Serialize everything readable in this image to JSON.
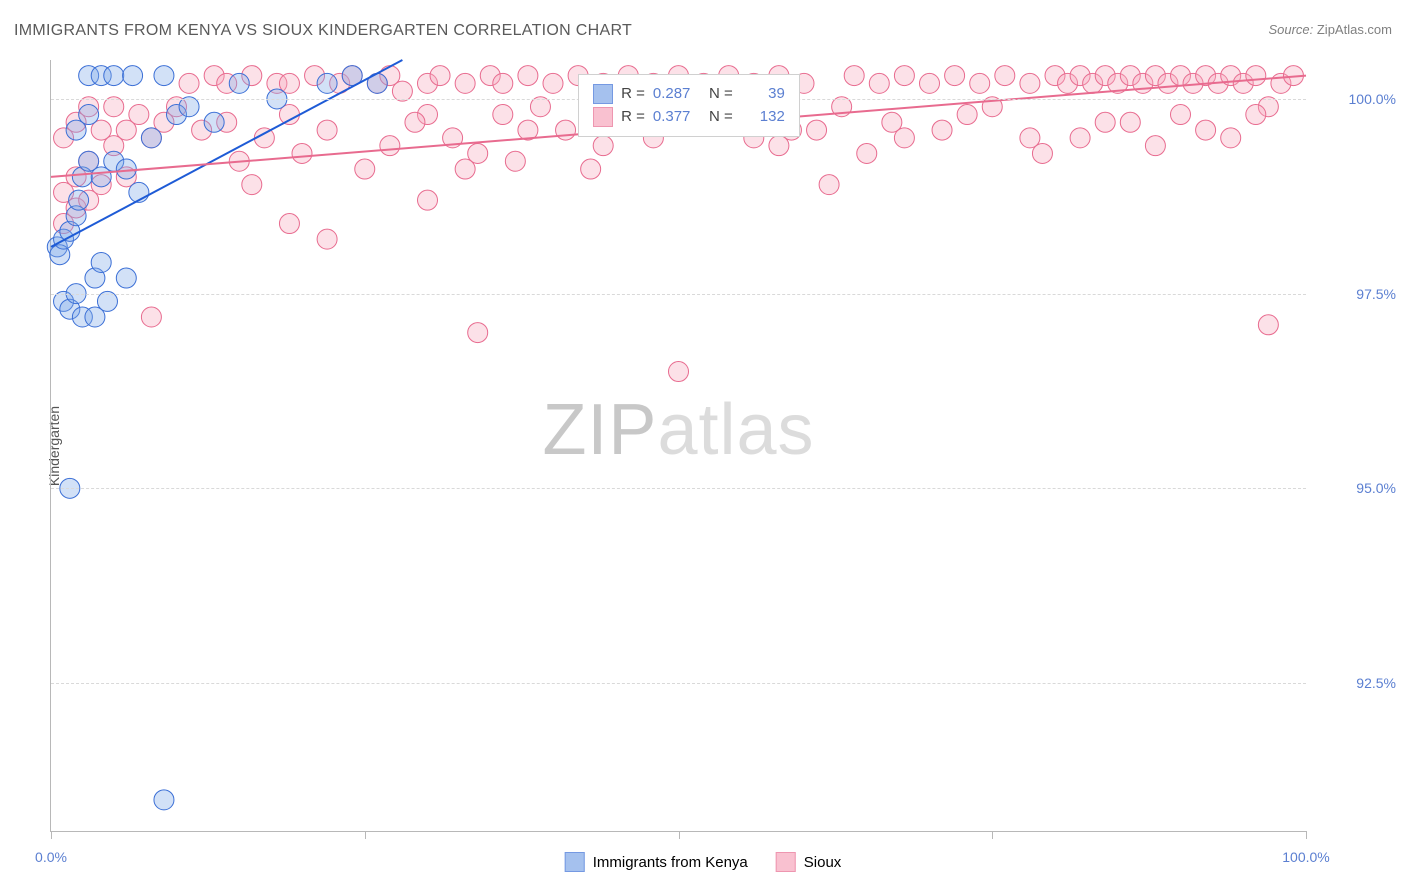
{
  "header": {
    "title": "IMMIGRANTS FROM KENYA VS SIOUX KINDERGARTEN CORRELATION CHART",
    "source_label": "Source: ",
    "source_value": "ZipAtlas.com"
  },
  "chart": {
    "type": "scatter",
    "ylabel": "Kindergarten",
    "xlim": [
      0,
      100
    ],
    "ylim": [
      90.6,
      100.5
    ],
    "yticks": [
      {
        "v": 92.5,
        "label": "92.5%"
      },
      {
        "v": 95.0,
        "label": "95.0%"
      },
      {
        "v": 97.5,
        "label": "97.5%"
      },
      {
        "v": 100.0,
        "label": "100.0%"
      }
    ],
    "xticks_major": [
      0,
      50,
      100
    ],
    "xticks_minor": [
      25,
      75
    ],
    "xtick_labels": {
      "0": "0.0%",
      "100": "100.0%"
    },
    "background_color": "#ffffff",
    "grid_color": "#d9d9d9",
    "axis_color": "#b8b8b8",
    "tick_label_color": "#5b7fd1",
    "marker_radius": 10,
    "marker_opacity": 0.35,
    "line_width": 2,
    "series": [
      {
        "name": "Immigrants from Kenya",
        "color_fill": "#7fa8e8",
        "color_stroke": "#3b6fd6",
        "line_color": "#1e5bd6",
        "R": "0.287",
        "N": "39",
        "trend": {
          "x1": 0,
          "y1": 98.1,
          "x2": 28,
          "y2": 100.5
        },
        "points": [
          [
            0.5,
            98.1
          ],
          [
            0.7,
            98.0
          ],
          [
            1.0,
            98.2
          ],
          [
            1.5,
            98.3
          ],
          [
            2.0,
            98.5
          ],
          [
            2.2,
            98.7
          ],
          [
            2.5,
            99.0
          ],
          [
            3.0,
            99.2
          ],
          [
            1.0,
            97.4
          ],
          [
            1.5,
            97.3
          ],
          [
            2.0,
            97.5
          ],
          [
            2.5,
            97.2
          ],
          [
            3.5,
            97.7
          ],
          [
            4.0,
            97.9
          ],
          [
            3.5,
            97.2
          ],
          [
            4.5,
            97.4
          ],
          [
            2.0,
            99.6
          ],
          [
            3.0,
            99.8
          ],
          [
            3.0,
            100.3
          ],
          [
            4.0,
            100.3
          ],
          [
            5.0,
            100.3
          ],
          [
            6.5,
            100.3
          ],
          [
            9.0,
            100.3
          ],
          [
            4.0,
            99.0
          ],
          [
            5.0,
            99.2
          ],
          [
            6.0,
            99.1
          ],
          [
            10.0,
            99.8
          ],
          [
            7.0,
            98.8
          ],
          [
            1.5,
            95.0
          ],
          [
            6.0,
            97.7
          ],
          [
            8.0,
            99.5
          ],
          [
            11.0,
            99.9
          ],
          [
            13.0,
            99.7
          ],
          [
            9.0,
            91.0
          ],
          [
            15.0,
            100.2
          ],
          [
            18.0,
            100.0
          ],
          [
            22.0,
            100.2
          ],
          [
            24.0,
            100.3
          ],
          [
            26.0,
            100.2
          ]
        ]
      },
      {
        "name": "Sioux",
        "color_fill": "#f7a8bd",
        "color_stroke": "#e86b8f",
        "line_color": "#e86b8f",
        "R": "0.377",
        "N": "132",
        "trend": {
          "x1": 0,
          "y1": 99.0,
          "x2": 100,
          "y2": 100.3
        },
        "points": [
          [
            1,
            98.8
          ],
          [
            2,
            99.0
          ],
          [
            3,
            99.2
          ],
          [
            1,
            98.4
          ],
          [
            2,
            98.6
          ],
          [
            3,
            98.7
          ],
          [
            4,
            98.9
          ],
          [
            1,
            99.5
          ],
          [
            2,
            99.7
          ],
          [
            4,
            99.6
          ],
          [
            3,
            99.9
          ],
          [
            5,
            99.4
          ],
          [
            6,
            99.6
          ],
          [
            7,
            99.8
          ],
          [
            8,
            99.5
          ],
          [
            9,
            99.7
          ],
          [
            10,
            99.9
          ],
          [
            8,
            97.2
          ],
          [
            6,
            99.0
          ],
          [
            5,
            99.9
          ],
          [
            11,
            100.2
          ],
          [
            13,
            100.3
          ],
          [
            14,
            100.2
          ],
          [
            16,
            100.3
          ],
          [
            18,
            100.2
          ],
          [
            19,
            100.2
          ],
          [
            21,
            100.3
          ],
          [
            23,
            100.2
          ],
          [
            24,
            100.3
          ],
          [
            26,
            100.2
          ],
          [
            27,
            100.3
          ],
          [
            28,
            100.1
          ],
          [
            12,
            99.6
          ],
          [
            14,
            99.7
          ],
          [
            17,
            99.5
          ],
          [
            19,
            99.8
          ],
          [
            20,
            99.3
          ],
          [
            22,
            99.6
          ],
          [
            19,
            98.4
          ],
          [
            22,
            98.2
          ],
          [
            15,
            99.2
          ],
          [
            16,
            98.9
          ],
          [
            30,
            100.2
          ],
          [
            31,
            100.3
          ],
          [
            33,
            100.2
          ],
          [
            35,
            100.3
          ],
          [
            36,
            100.2
          ],
          [
            38,
            100.3
          ],
          [
            30,
            99.8
          ],
          [
            32,
            99.5
          ],
          [
            34,
            99.3
          ],
          [
            36,
            99.8
          ],
          [
            38,
            99.6
          ],
          [
            30,
            98.7
          ],
          [
            34,
            97.0
          ],
          [
            25,
            99.1
          ],
          [
            27,
            99.4
          ],
          [
            40,
            100.2
          ],
          [
            42,
            100.3
          ],
          [
            44,
            100.2
          ],
          [
            46,
            100.3
          ],
          [
            48,
            100.2
          ],
          [
            41,
            99.6
          ],
          [
            44,
            99.4
          ],
          [
            47,
            99.8
          ],
          [
            43,
            99.1
          ],
          [
            50,
            100.3
          ],
          [
            52,
            100.2
          ],
          [
            54,
            100.3
          ],
          [
            53,
            99.7
          ],
          [
            56,
            99.5
          ],
          [
            50,
            96.5
          ],
          [
            56,
            100.2
          ],
          [
            58,
            100.3
          ],
          [
            60,
            100.2
          ],
          [
            61,
            99.6
          ],
          [
            63,
            99.9
          ],
          [
            62,
            98.9
          ],
          [
            64,
            100.3
          ],
          [
            66,
            100.2
          ],
          [
            68,
            100.3
          ],
          [
            65,
            99.3
          ],
          [
            67,
            99.7
          ],
          [
            70,
            100.2
          ],
          [
            72,
            100.3
          ],
          [
            74,
            100.2
          ],
          [
            71,
            99.6
          ],
          [
            73,
            99.8
          ],
          [
            76,
            100.3
          ],
          [
            78,
            100.2
          ],
          [
            79,
            99.3
          ],
          [
            80,
            100.3
          ],
          [
            81,
            100.2
          ],
          [
            82,
            100.3
          ],
          [
            83,
            100.2
          ],
          [
            84,
            100.3
          ],
          [
            85,
            100.2
          ],
          [
            86,
            100.3
          ],
          [
            87,
            100.2
          ],
          [
            88,
            100.3
          ],
          [
            89,
            100.2
          ],
          [
            90,
            100.3
          ],
          [
            91,
            100.2
          ],
          [
            92,
            100.3
          ],
          [
            93,
            100.2
          ],
          [
            94,
            100.3
          ],
          [
            82,
            99.5
          ],
          [
            86,
            99.7
          ],
          [
            88,
            99.4
          ],
          [
            90,
            99.8
          ],
          [
            92,
            99.6
          ],
          [
            95,
            100.2
          ],
          [
            96,
            100.3
          ],
          [
            97,
            99.9
          ],
          [
            98,
            100.2
          ],
          [
            99,
            100.3
          ],
          [
            97,
            97.1
          ],
          [
            78,
            99.5
          ],
          [
            45,
            99.9
          ],
          [
            48,
            99.5
          ],
          [
            55,
            99.9
          ],
          [
            59,
            99.6
          ],
          [
            68,
            99.5
          ],
          [
            75,
            99.9
          ],
          [
            84,
            99.7
          ],
          [
            94,
            99.5
          ],
          [
            96,
            99.8
          ],
          [
            58,
            99.4
          ],
          [
            39,
            99.9
          ],
          [
            29,
            99.7
          ],
          [
            33,
            99.1
          ],
          [
            37,
            99.2
          ]
        ]
      }
    ],
    "legend": {
      "bottom_items": [
        "Immigrants from Kenya",
        "Sioux"
      ]
    },
    "watermark": {
      "zip": "ZIP",
      "atlas": "atlas"
    }
  }
}
